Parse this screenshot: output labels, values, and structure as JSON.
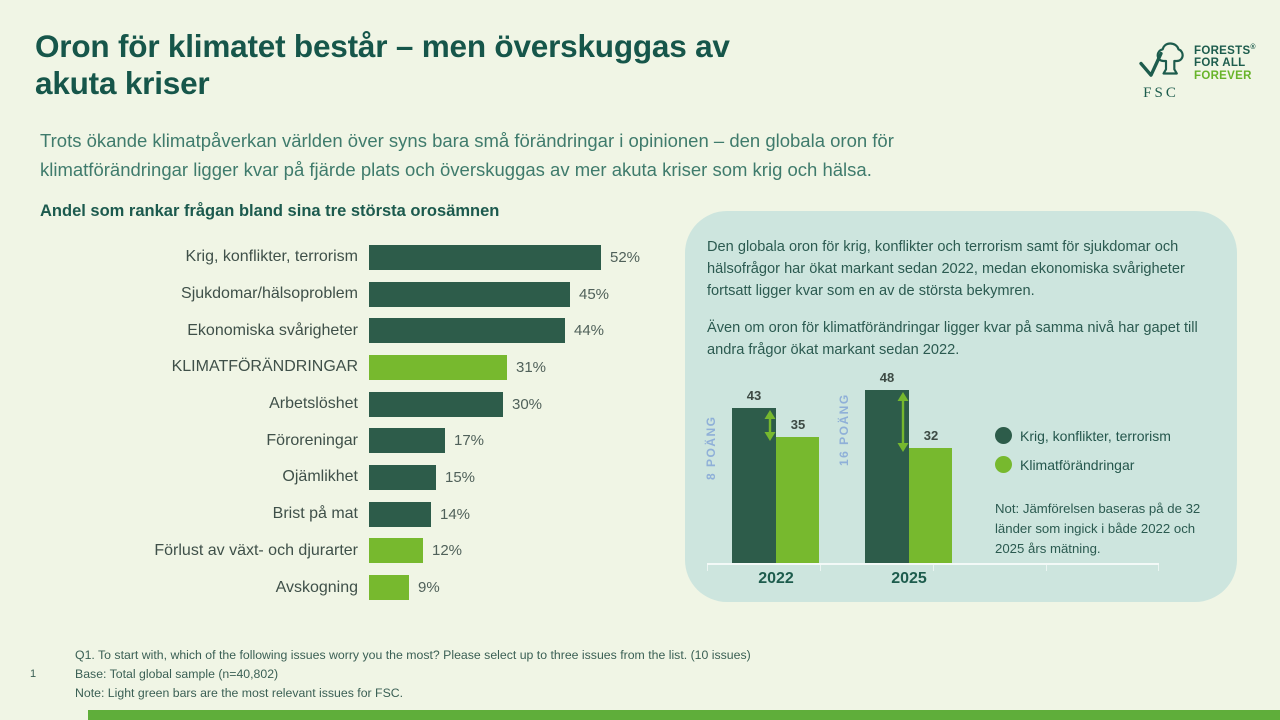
{
  "slide": {
    "title_line1": "Oron för klimatet består – men överskuggas av",
    "title_line2": "akuta kriser",
    "subtitle_line1": "Trots ökande klimatpåverkan världen över syns bara små förändringar i opinionen – den globala oron för",
    "subtitle_line2": "klimatförändringar ligger kvar på fjärde plats och överskuggas av mer akuta kriser som krig och hälsa.",
    "page_number": "1"
  },
  "logo": {
    "fsc": "FSC",
    "line1": "FORESTS",
    "registered": "®",
    "line2": "FOR ALL",
    "line3": "FOREVER"
  },
  "chart_data": [
    {
      "type": "bar",
      "orientation": "horizontal",
      "title": "Andel som rankar frågan bland sina tre största orosämnen",
      "categories": [
        "Krig, konflikter, terrorism",
        "Sjukdomar/hälsoproblem",
        "Ekonomiska svårigheter",
        "KLIMATFÖRÄNDRINGAR",
        "Arbetslöshet",
        "Föroreningar",
        "Ojämlikhet",
        "Brist på mat",
        "Förlust av växt- och djurarter",
        "Avskogning"
      ],
      "values": [
        52,
        45,
        44,
        31,
        30,
        17,
        15,
        14,
        12,
        9
      ],
      "unit": "%",
      "xlim": [
        0,
        60
      ],
      "fsc_highlight_indices": [
        3,
        8,
        9
      ],
      "bar_colors": {
        "default": "#2d5c4a",
        "highlight": "#77b92e"
      }
    },
    {
      "type": "bar",
      "orientation": "vertical",
      "categories": [
        "2022",
        "2025"
      ],
      "series": [
        {
          "name": "Krig, konflikter, terrorism",
          "color": "#2d5c4a",
          "values": [
            43,
            48
          ]
        },
        {
          "name": "Klimatförändringar",
          "color": "#77b92e",
          "values": [
            35,
            32
          ]
        }
      ],
      "gap_labels": [
        "8 POÄNG",
        "16 POÄNG"
      ],
      "ylim": [
        0,
        50
      ],
      "legend_position": "right",
      "note": "Not: Jämförelsen baseras på de 32 länder som ingick i både 2022 och 2025 års mätning."
    }
  ],
  "panel": {
    "para1": "Den globala oron för krig, konflikter och terrorism samt för sjukdomar och hälsofrågor har ökat markant sedan 2022, medan ekonomiska svårigheter fortsatt ligger kvar som en av de största bekymren.",
    "para2": "Även om oron för klimatförändringar ligger kvar på samma nivå har gapet till andra frågor ökat markant sedan 2022."
  },
  "footer": {
    "line1": "Q1. To start with, which of the following issues worry you the most? Please select up to three issues from the list. (10 issues)",
    "line2": "Base: Total global sample (n=40,802)",
    "line3": "Note: Light green bars are the most relevant issues for FSC."
  },
  "colors": {
    "background": "#f0f5e5",
    "title_green": "#16564a",
    "dark_bar": "#2d5c4a",
    "light_bar": "#77b92e",
    "panel_bg": "#cde5de",
    "gap_label_blue": "#8fb0d8",
    "arrow_green": "#76b82e",
    "logo_bright_green": "#68b42a",
    "bottom_bar_green": "#5fae3a"
  }
}
